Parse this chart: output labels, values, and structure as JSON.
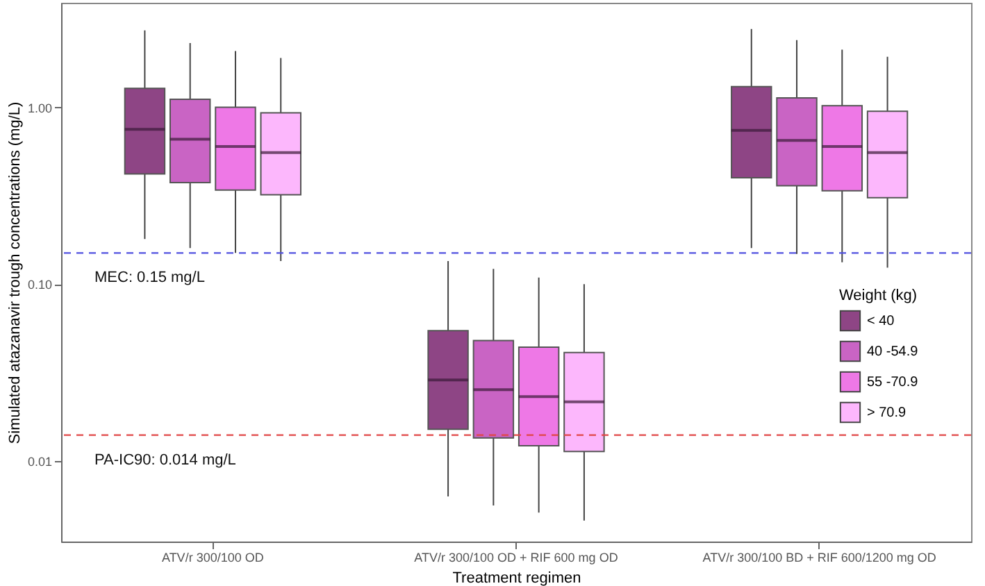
{
  "chart_data": {
    "type": "box",
    "xlabel": "Treatment regimen",
    "ylabel": "Simulated atazanavir trough concentrations (mg/L)",
    "legend_title": "Weight (kg)",
    "legend": "right",
    "grid": false,
    "log": true,
    "categories": [
      "ATV/r 300/100 OD",
      "ATV/r 300/100 OD + RIF 600 mg OD",
      "ATV/r 300/100 BD + RIF 600/1200 mg OD"
    ],
    "ylim": [
      0.0035,
      3.9
    ],
    "yticks": [
      {
        "value": 0.01,
        "label": "0.01"
      },
      {
        "value": 0.1,
        "label": "0.10"
      },
      {
        "value": 1,
        "label": "1.00"
      }
    ],
    "series": [
      {
        "name": "< 40",
        "color": "#8e4585",
        "boxes": [
          {
            "low": 0.18,
            "q1": 0.42,
            "median": 0.75,
            "q3": 1.28,
            "high": 2.72
          },
          {
            "low": 0.0063,
            "q1": 0.0151,
            "median": 0.0287,
            "q3": 0.0545,
            "high": 0.135
          },
          {
            "low": 0.16,
            "q1": 0.4,
            "median": 0.74,
            "q3": 1.31,
            "high": 2.77
          }
        ]
      },
      {
        "name": "40 -54.9",
        "color": "#c964c4",
        "boxes": [
          {
            "low": 0.16,
            "q1": 0.375,
            "median": 0.66,
            "q3": 1.11,
            "high": 2.31
          },
          {
            "low": 0.0056,
            "q1": 0.0135,
            "median": 0.0253,
            "q3": 0.048,
            "high": 0.122
          },
          {
            "low": 0.148,
            "q1": 0.36,
            "median": 0.65,
            "q3": 1.13,
            "high": 2.4
          }
        ]
      },
      {
        "name": "55 -70.9",
        "color": "#ee78e6",
        "boxes": [
          {
            "low": 0.15,
            "q1": 0.34,
            "median": 0.6,
            "q3": 1.0,
            "high": 2.08
          },
          {
            "low": 0.0051,
            "q1": 0.0122,
            "median": 0.0231,
            "q3": 0.044,
            "high": 0.109
          },
          {
            "low": 0.133,
            "q1": 0.337,
            "median": 0.6,
            "q3": 1.02,
            "high": 2.12
          }
        ]
      },
      {
        "name": "> 70.9",
        "color": "#fcb7fc",
        "boxes": [
          {
            "low": 0.135,
            "q1": 0.32,
            "median": 0.555,
            "q3": 0.93,
            "high": 1.9
          },
          {
            "low": 0.0046,
            "q1": 0.0113,
            "median": 0.0216,
            "q3": 0.041,
            "high": 0.1
          },
          {
            "low": 0.124,
            "q1": 0.308,
            "median": 0.555,
            "q3": 0.95,
            "high": 1.93
          }
        ]
      }
    ],
    "ref_lines": [
      {
        "axis": "y",
        "value": 0.15,
        "label": "MEC: 0.15 mg/L",
        "color": "#5050e0",
        "line_style": "dashed"
      },
      {
        "axis": "y",
        "value": 0.014,
        "label": "PA-IC90: 0.014 mg/L",
        "color": "#e04545",
        "line_style": "dashed"
      }
    ]
  }
}
